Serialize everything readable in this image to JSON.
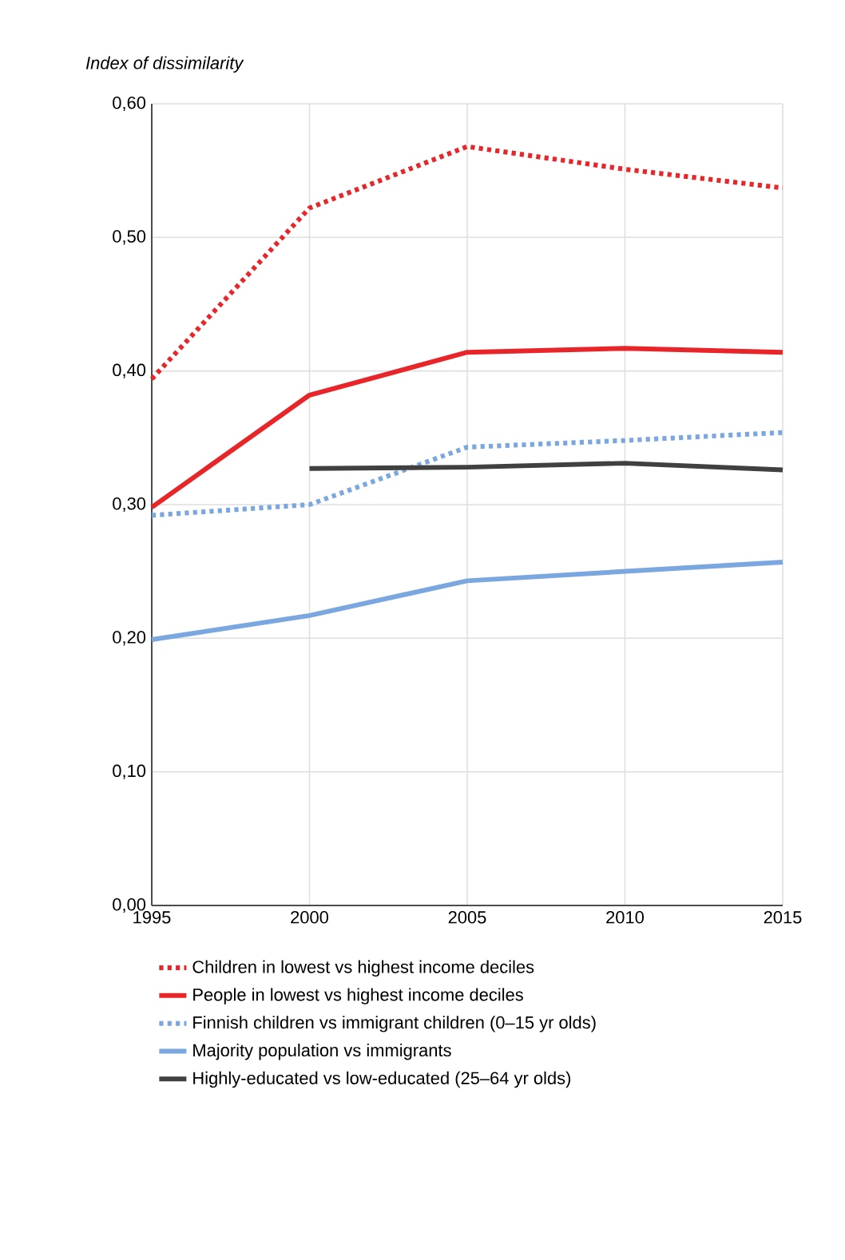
{
  "chart_data": {
    "type": "line",
    "ylabel": "Index of dissimilarity",
    "x": [
      1995,
      2000,
      2005,
      2010,
      2015
    ],
    "xlim": [
      1995,
      2015
    ],
    "xticks": [
      1995,
      2000,
      2005,
      2010,
      2015
    ],
    "ylim": [
      0,
      0.6
    ],
    "yticks": [
      {
        "value": 0,
        "label": "0,00"
      },
      {
        "value": 0.1,
        "label": "0,10"
      },
      {
        "value": 0.2,
        "label": "0,20"
      },
      {
        "value": 0.3,
        "label": "0,30"
      },
      {
        "value": 0.4,
        "label": "0,40"
      },
      {
        "value": 0.5,
        "label": "0,50"
      },
      {
        "value": 0.6,
        "label": "0,60"
      }
    ],
    "grid": true,
    "legend": "bottom",
    "marker": "none",
    "series": [
      {
        "name": "Children in lowest vs highest income deciles",
        "color": "#e8262a",
        "line_style": "dotted",
        "values": [
          0.394,
          0.522,
          0.568,
          0.551,
          0.537
        ]
      },
      {
        "name": "People in lowest vs highest income deciles",
        "color": "#e8262a",
        "line_style": "solid",
        "values": [
          0.298,
          0.382,
          0.414,
          0.417,
          0.414
        ]
      },
      {
        "name": "Finnish children vs immigrant children (0–15 yr olds)",
        "color": "#7aa7e0",
        "line_style": "dotted",
        "values": [
          0.292,
          0.3,
          0.343,
          0.348,
          0.354
        ]
      },
      {
        "name": "Majority population vs immigrants",
        "color": "#7aa7e0",
        "line_style": "solid",
        "values": [
          0.199,
          0.217,
          0.243,
          0.25,
          0.257
        ]
      },
      {
        "name": "Highly-educated vs low-educated (25–64 yr olds)",
        "color": "#404040",
        "line_style": "solid",
        "values": [
          null,
          0.327,
          0.328,
          0.331,
          0.326
        ]
      }
    ]
  }
}
